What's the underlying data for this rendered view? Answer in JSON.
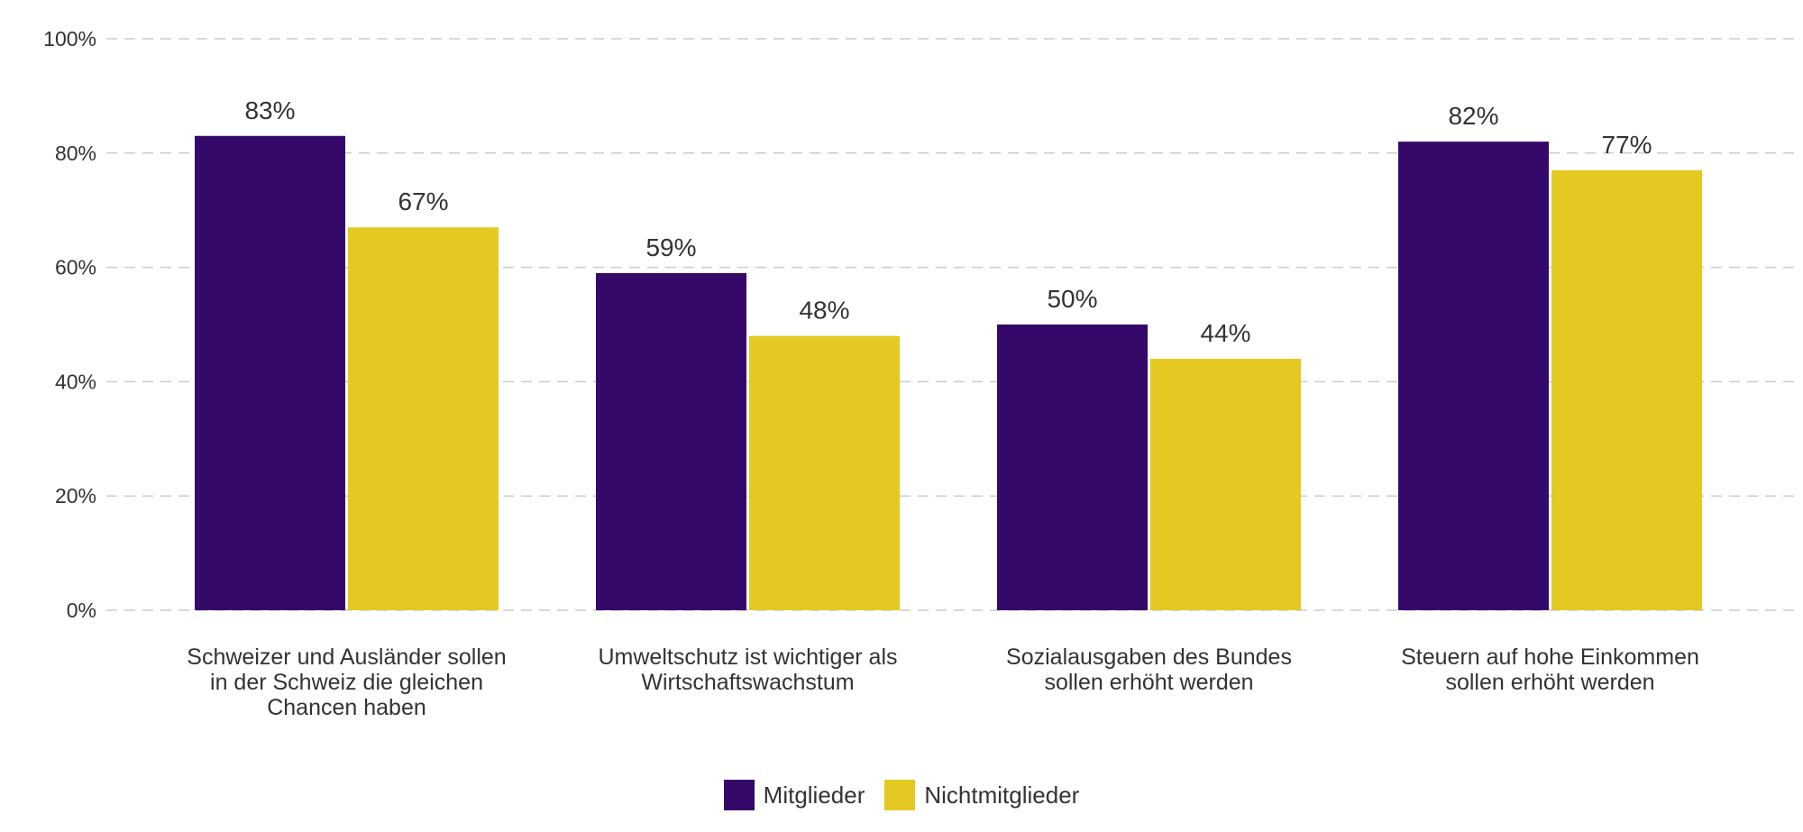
{
  "chart_data": {
    "type": "bar",
    "categories": [
      [
        "Schweizer und Ausländer sollen",
        "in der Schweiz die gleichen",
        "Chancen haben"
      ],
      [
        "Umweltschutz ist wichtiger als",
        "Wirtschaftswachstum"
      ],
      [
        "Sozialausgaben des Bundes",
        "sollen erhöht werden"
      ],
      [
        "Steuern auf hohe Einkommen",
        "sollen erhöht werden"
      ]
    ],
    "series": [
      {
        "name": "Mitglieder",
        "color": "#35096a",
        "values": [
          83,
          59,
          50,
          82
        ],
        "labels": [
          "83%",
          "59%",
          "50%",
          "82%"
        ]
      },
      {
        "name": "Nichtmitglieder",
        "color": "#e5c923",
        "values": [
          67,
          48,
          44,
          77
        ],
        "labels": [
          "67%",
          "48%",
          "44%",
          "77%"
        ]
      }
    ],
    "ylim": [
      0,
      100
    ],
    "yticks": [
      0,
      20,
      40,
      60,
      80,
      100
    ],
    "ytick_labels": [
      "0%",
      "20%",
      "40%",
      "60%",
      "80%",
      "100%"
    ],
    "grid": true,
    "legend_position": "bottom-center"
  }
}
